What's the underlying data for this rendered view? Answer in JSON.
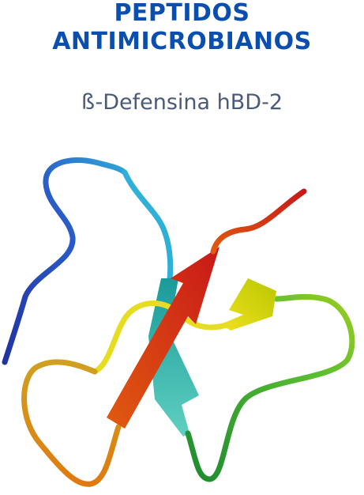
{
  "title": [
    "PEPTIDOS",
    "ANTIMICROBIANOS"
  ],
  "subtitle": "ß-Defensina hBD-2"
}
